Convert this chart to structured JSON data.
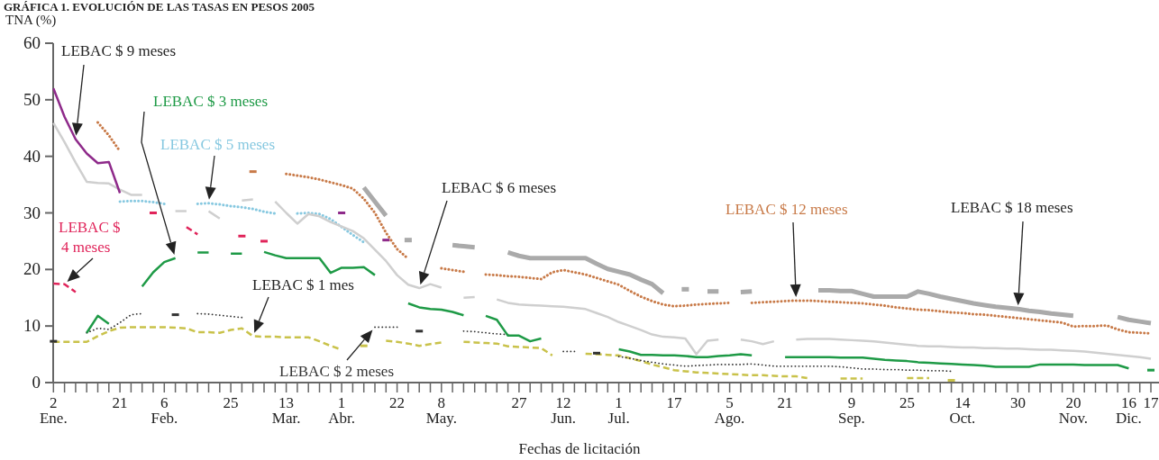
{
  "chart_data": {
    "type": "line",
    "title": "GRÁFICA 1. EVOLUCIÓN DE LAS TASAS EN PESOS 2005",
    "ylabel": "TNA (%)",
    "xlabel": "Fechas de licitación",
    "ylim": [
      0,
      60
    ],
    "yticks": [
      0,
      10,
      20,
      30,
      40,
      50,
      60
    ],
    "categories": [
      "2\nEne.",
      null,
      null,
      null,
      null,
      null,
      "21",
      null,
      null,
      null,
      "6\nFeb.",
      null,
      null,
      null,
      null,
      null,
      "25",
      null,
      null,
      null,
      null,
      "13\nMar.",
      null,
      null,
      null,
      null,
      "1\nAbr.",
      null,
      null,
      null,
      null,
      "22",
      null,
      null,
      null,
      "8\nMay.",
      null,
      null,
      null,
      null,
      null,
      null,
      "27",
      null,
      null,
      null,
      "12\nJun.",
      null,
      null,
      null,
      null,
      "1\nJul.",
      null,
      null,
      null,
      null,
      "17",
      null,
      null,
      null,
      null,
      "5\nAgo.",
      null,
      null,
      null,
      null,
      "21",
      null,
      null,
      null,
      null,
      null,
      "9\nSep.",
      null,
      null,
      null,
      null,
      "25",
      null,
      null,
      null,
      null,
      "14\nOct.",
      null,
      null,
      null,
      null,
      "30",
      null,
      null,
      null,
      null,
      "20\nNov.",
      null,
      null,
      null,
      null,
      "16\nDic.",
      null,
      "17"
    ],
    "marker": "none",
    "series": [
      {
        "name": "LEBAC $ 1 mes",
        "color": "#c9c24a",
        "line_style": "dashed",
        "values": [
          7.2,
          7.2,
          7.2,
          7.2,
          8.2,
          9.1,
          9.7,
          9.8,
          9.8,
          9.8,
          9.8,
          9.7,
          9.6,
          8.9,
          8.9,
          8.8,
          9.3,
          9.6,
          8.2,
          8.1,
          8.1,
          8.0,
          8.0,
          8.0,
          7.3,
          6.5,
          5.8,
          null,
          6.5,
          null,
          7.4,
          7.2,
          6.9,
          6.5,
          6.8,
          7.1,
          null,
          7.2,
          7.1,
          7.0,
          6.9,
          6.4,
          6.3,
          6.2,
          6.1,
          4.8,
          null,
          null,
          5.1,
          5.0,
          4.9,
          4.8,
          4.3,
          3.8,
          3.2,
          2.7,
          2.2,
          2.0,
          1.8,
          1.7,
          1.6,
          1.5,
          1.4,
          1.3,
          1.3,
          1.2,
          1.1,
          1.1,
          0.8,
          null,
          null,
          0.7,
          0.7,
          0.7,
          null,
          null,
          null,
          0.8,
          0.8,
          0.8,
          null,
          0.4,
          null,
          null,
          null,
          null,
          null,
          null,
          null,
          null,
          null,
          null,
          null,
          null,
          null,
          null,
          null,
          null,
          null,
          null
        ]
      },
      {
        "name": "LEBAC $ 2 meses",
        "color": "#333333",
        "line_style": "dotted",
        "values": [
          7.3,
          null,
          null,
          8.8,
          9.6,
          9.4,
          10.6,
          12.0,
          12.2,
          null,
          null,
          12.0,
          null,
          12.2,
          12.1,
          11.9,
          11.7,
          11.5,
          null,
          null,
          null,
          null,
          null,
          null,
          null,
          null,
          null,
          null,
          null,
          9.8,
          9.8,
          9.8,
          null,
          9.1,
          null,
          null,
          null,
          9.1,
          9.0,
          8.8,
          8.6,
          8.5,
          null,
          null,
          null,
          null,
          5.5,
          5.5,
          null,
          5.2,
          null,
          4.6,
          4.3,
          3.9,
          3.6,
          3.3,
          3.1,
          2.9,
          3.0,
          3.1,
          3.2,
          3.2,
          3.2,
          3.3,
          3.1,
          2.9,
          2.9,
          2.9,
          2.9,
          2.9,
          2.9,
          2.8,
          2.6,
          2.4,
          2.4,
          2.3,
          2.3,
          2.2,
          2.2,
          2.1,
          2.1,
          2.0,
          null,
          null,
          null,
          null,
          null,
          null,
          null,
          null,
          null,
          null,
          null,
          null,
          null,
          null,
          null,
          null,
          null,
          null
        ]
      },
      {
        "name": "LEBAC $ 3 meses",
        "color": "#1e9a46",
        "line_style": "solid",
        "values": [
          null,
          null,
          null,
          8.8,
          11.8,
          10.4,
          null,
          null,
          17.0,
          19.5,
          21.3,
          22.0,
          null,
          23.0,
          23.0,
          null,
          22.8,
          22.8,
          null,
          23.1,
          22.5,
          22.0,
          22.0,
          22.0,
          22.0,
          19.4,
          20.3,
          20.3,
          20.4,
          19.0,
          null,
          null,
          14.0,
          13.3,
          13.0,
          12.9,
          12.5,
          11.9,
          null,
          11.8,
          11.1,
          8.3,
          8.3,
          7.3,
          7.8,
          null,
          null,
          null,
          null,
          null,
          null,
          5.9,
          5.5,
          4.9,
          4.9,
          4.8,
          4.8,
          4.7,
          4.5,
          4.5,
          4.7,
          4.8,
          5.0,
          4.8,
          null,
          null,
          4.5,
          4.5,
          4.5,
          4.5,
          4.5,
          4.4,
          4.4,
          4.4,
          4.2,
          4.0,
          3.9,
          3.8,
          3.6,
          3.5,
          3.4,
          3.3,
          3.2,
          3.1,
          3.0,
          2.8,
          2.8,
          2.8,
          2.8,
          3.2,
          3.2,
          3.2,
          3.2,
          3.1,
          3.1,
          3.1,
          3.1,
          2.5,
          null,
          2.2
        ]
      },
      {
        "name": "LEBAC $ 4 meses",
        "color": "#e0245a",
        "line_style": "dashed",
        "values": [
          17.5,
          17.4,
          16.0,
          null,
          null,
          null,
          null,
          null,
          null,
          30.0,
          null,
          null,
          27.5,
          26.2,
          null,
          null,
          null,
          25.9,
          null,
          25.0,
          null,
          null,
          null,
          null,
          null,
          null,
          null,
          null,
          null,
          null,
          null,
          null,
          null,
          null,
          null,
          null,
          null,
          null,
          null,
          null,
          null,
          null,
          null,
          null,
          null,
          null,
          null,
          null,
          null,
          null,
          null,
          null,
          null,
          null,
          null,
          null,
          null,
          null,
          null,
          null,
          null,
          null,
          null,
          null,
          null,
          null,
          null,
          null,
          null,
          null,
          null,
          null,
          null,
          null,
          null,
          null,
          null,
          null,
          null,
          null,
          null,
          null,
          null,
          null,
          null,
          null,
          null,
          null,
          null,
          null,
          null,
          null,
          null,
          null,
          null,
          null,
          null,
          null,
          null,
          null
        ]
      },
      {
        "name": "LEBAC $ 5 meses",
        "color": "#86c8e0",
        "line_style": "dotted",
        "values": [
          null,
          null,
          null,
          null,
          null,
          null,
          32.0,
          32.1,
          32.1,
          31.9,
          31.6,
          null,
          null,
          31.6,
          31.7,
          31.5,
          31.2,
          31.0,
          30.7,
          30.2,
          29.9,
          null,
          29.9,
          30.0,
          29.8,
          28.9,
          27.5,
          26.1,
          24.8,
          null,
          null,
          null,
          null,
          null,
          null,
          null,
          null,
          null,
          null,
          null,
          null,
          null,
          null,
          null,
          null,
          null,
          null,
          null,
          null,
          null,
          null,
          null,
          null,
          null,
          null,
          null,
          null,
          null,
          null,
          null,
          null,
          null,
          null,
          null,
          null,
          null,
          null,
          null,
          null,
          null,
          null,
          null,
          null,
          null,
          null,
          null,
          null,
          null,
          null,
          null,
          null,
          null,
          null,
          null,
          null,
          null,
          null,
          null,
          null,
          null,
          null,
          null,
          null,
          null,
          null,
          null,
          null,
          null,
          null,
          null
        ]
      },
      {
        "name": "LEBAC $ 6 meses",
        "color": "#cfcfcf",
        "line_style": "solid",
        "values": [
          45.9,
          42.5,
          38.9,
          35.5,
          35.3,
          35.2,
          34.1,
          33.2,
          33.2,
          null,
          null,
          30.3,
          30.3,
          null,
          30.3,
          29.0,
          null,
          32.2,
          32.4,
          null,
          32.0,
          30.0,
          28.1,
          29.8,
          29.4,
          28.4,
          27.6,
          26.8,
          25.5,
          23.5,
          21.5,
          19.0,
          17.3,
          16.7,
          17.4,
          16.8,
          null,
          15.0,
          15.1,
          null,
          14.7,
          14.1,
          13.8,
          13.7,
          13.6,
          13.5,
          13.4,
          13.2,
          13.0,
          12.3,
          11.6,
          10.7,
          10.0,
          9.3,
          8.5,
          8.1,
          8.0,
          7.8,
          5.0,
          7.4,
          7.6,
          null,
          7.6,
          7.3,
          6.8,
          7.3,
          null,
          7.6,
          7.7,
          7.7,
          7.7,
          7.6,
          7.5,
          7.4,
          7.3,
          7.1,
          6.9,
          6.7,
          6.5,
          6.4,
          6.4,
          6.3,
          6.2,
          6.2,
          6.1,
          6.1,
          6.0,
          6.0,
          5.9,
          5.8,
          5.8,
          5.7,
          5.6,
          5.5,
          5.3,
          5.1,
          4.9,
          4.7,
          4.5,
          4.2
        ]
      },
      {
        "name": "LEBAC $ 9 meses",
        "color": "#8e2a8a",
        "line_style": "solid",
        "values": [
          52.0,
          47.0,
          43.0,
          40.5,
          38.8,
          39.0,
          33.5,
          null,
          null,
          null,
          null,
          null,
          null,
          null,
          null,
          null,
          null,
          null,
          null,
          null,
          null,
          null,
          null,
          null,
          null,
          null,
          30.0,
          null,
          null,
          null,
          25.2,
          null,
          null,
          null,
          null,
          null,
          null,
          null,
          null,
          null,
          null,
          null,
          null,
          null,
          null,
          null,
          null,
          null,
          null,
          null,
          null,
          null,
          null,
          null,
          null,
          null,
          null,
          null,
          null,
          null,
          null,
          null,
          null,
          null,
          null,
          null,
          null,
          null,
          null,
          null,
          null,
          null,
          null,
          null,
          null,
          null,
          null,
          null,
          null,
          null,
          null,
          null,
          null,
          null,
          null,
          null,
          null,
          null,
          null,
          null,
          null,
          null,
          null,
          null,
          null,
          null,
          null,
          null,
          null,
          null
        ]
      },
      {
        "name": "LEBAC $ 12 meses",
        "color": "#c87a48",
        "line_style": "dotted",
        "values": [
          null,
          null,
          null,
          null,
          46.0,
          43.7,
          40.9,
          null,
          null,
          null,
          null,
          null,
          null,
          null,
          null,
          null,
          null,
          null,
          37.3,
          null,
          null,
          36.9,
          36.6,
          36.3,
          35.9,
          35.4,
          34.9,
          34.3,
          32.5,
          30.0,
          26.5,
          23.6,
          21.9,
          null,
          null,
          20.2,
          19.9,
          19.6,
          null,
          19.1,
          19.0,
          18.8,
          18.7,
          18.5,
          18.3,
          19.5,
          19.9,
          19.5,
          19.1,
          18.5,
          17.9,
          17.3,
          16.2,
          15.2,
          14.4,
          13.8,
          13.5,
          13.6,
          13.8,
          13.9,
          14.0,
          14.1,
          null,
          14.1,
          14.2,
          14.3,
          14.4,
          14.5,
          14.5,
          14.4,
          14.3,
          14.2,
          14.1,
          14.0,
          13.8,
          13.6,
          13.3,
          13.1,
          12.9,
          12.8,
          12.6,
          12.4,
          12.3,
          12.1,
          12.0,
          11.8,
          11.6,
          11.4,
          11.2,
          11.0,
          10.8,
          10.6,
          9.9,
          10.0,
          10.0,
          10.1,
          9.4,
          8.9,
          8.8,
          8.7
        ]
      },
      {
        "name": "LEBAC $ 18 meses",
        "color": "#aaaaaa",
        "line_style": "solid",
        "values": [
          null,
          null,
          null,
          null,
          null,
          null,
          null,
          null,
          null,
          null,
          null,
          null,
          null,
          null,
          null,
          null,
          null,
          null,
          null,
          null,
          null,
          null,
          null,
          null,
          null,
          null,
          null,
          null,
          34.5,
          32.0,
          29.5,
          null,
          25.2,
          null,
          null,
          null,
          24.3,
          24.1,
          23.9,
          null,
          null,
          23.0,
          22.4,
          22.0,
          22.0,
          22.0,
          22.0,
          22.0,
          22.0,
          21.0,
          20.1,
          19.6,
          19.1,
          18.2,
          17.4,
          15.8,
          null,
          16.5,
          null,
          16.1,
          16.1,
          null,
          16.0,
          16.1,
          null,
          null,
          null,
          null,
          null,
          16.3,
          16.3,
          16.2,
          16.2,
          15.7,
          15.2,
          15.2,
          15.2,
          15.2,
          16.1,
          15.7,
          15.2,
          14.8,
          14.4,
          14.0,
          13.7,
          13.4,
          13.2,
          13.0,
          12.7,
          12.5,
          12.2,
          12.0,
          11.8,
          null,
          null,
          null,
          11.6,
          11.1,
          10.8,
          10.5
        ]
      }
    ]
  }
}
